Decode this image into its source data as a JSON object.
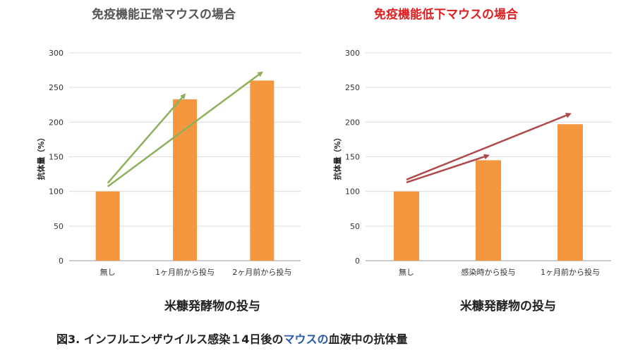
{
  "caption": {
    "part1": "図3. インフルエンザウイルス感染１4日後の",
    "highlight": "マウスの",
    "part2": "血液中の抗体量",
    "highlight_color": "#2a5aa8"
  },
  "chart_data": [
    {
      "type": "bar",
      "title": "免疫機能正常マウスの場合",
      "title_color": "#555555",
      "categories": [
        "無し",
        "1ヶ月前から投与",
        "2ヶ月前から投与"
      ],
      "values": [
        100,
        233,
        260
      ],
      "xlabel": "米糠発酵物の投与",
      "ylabel": "抗体量（%）",
      "ylim": [
        0,
        300
      ],
      "yticks": [
        0,
        50,
        100,
        150,
        200,
        250,
        300
      ],
      "bar_color": "#f4973f",
      "arrow_color": "#8fb05a",
      "arrows": [
        {
          "from": {
            "category": "無し",
            "value": 112
          },
          "to": {
            "category": "1ヶ月前から投与",
            "value": 240
          }
        },
        {
          "from": {
            "category": "無し",
            "value": 107
          },
          "to": {
            "category": "2ヶ月前から投与",
            "value": 272
          }
        }
      ]
    },
    {
      "type": "bar",
      "title": "免疫機能低下マウスの場合",
      "title_color": "#e02020",
      "categories": [
        "無し",
        "感染時から投与",
        "1ヶ月前から投与"
      ],
      "values": [
        100,
        145,
        197
      ],
      "xlabel": "米糠発酵物の投与",
      "ylabel": "抗体量（%）",
      "ylim": [
        0,
        300
      ],
      "yticks": [
        0,
        50,
        100,
        150,
        200,
        250,
        300
      ],
      "bar_color": "#f4973f",
      "arrow_color": "#b04a4a",
      "arrows": [
        {
          "from": {
            "category": "無し",
            "value": 117
          },
          "to": {
            "category": "1ヶ月前から投与",
            "value": 212
          }
        },
        {
          "from": {
            "category": "無し",
            "value": 113
          },
          "to": {
            "category": "感染時から投与",
            "value": 152
          }
        }
      ]
    }
  ]
}
